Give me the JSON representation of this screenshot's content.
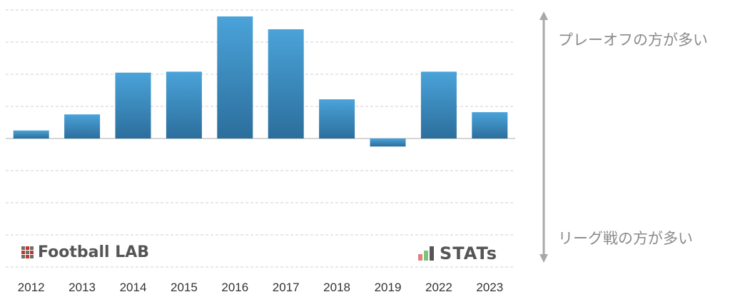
{
  "chart_data": {
    "type": "bar",
    "categories": [
      "2012",
      "2013",
      "2014",
      "2015",
      "2016",
      "2017",
      "2018",
      "2019",
      "2022",
      "2023"
    ],
    "values": [
      0.25,
      0.75,
      2.05,
      2.08,
      3.8,
      3.4,
      1.22,
      -0.25,
      2.08,
      0.82
    ],
    "ylim": [
      -4,
      4
    ],
    "grid": true,
    "bar_color_top": "#4aa3d9",
    "bar_color_bottom": "#2c6e9c"
  },
  "annotations": {
    "top": "プレーオフの方が多い",
    "bottom": "リーグ戦の方が多い"
  },
  "watermarks": {
    "left": "Football LAB",
    "right": "STATs"
  }
}
